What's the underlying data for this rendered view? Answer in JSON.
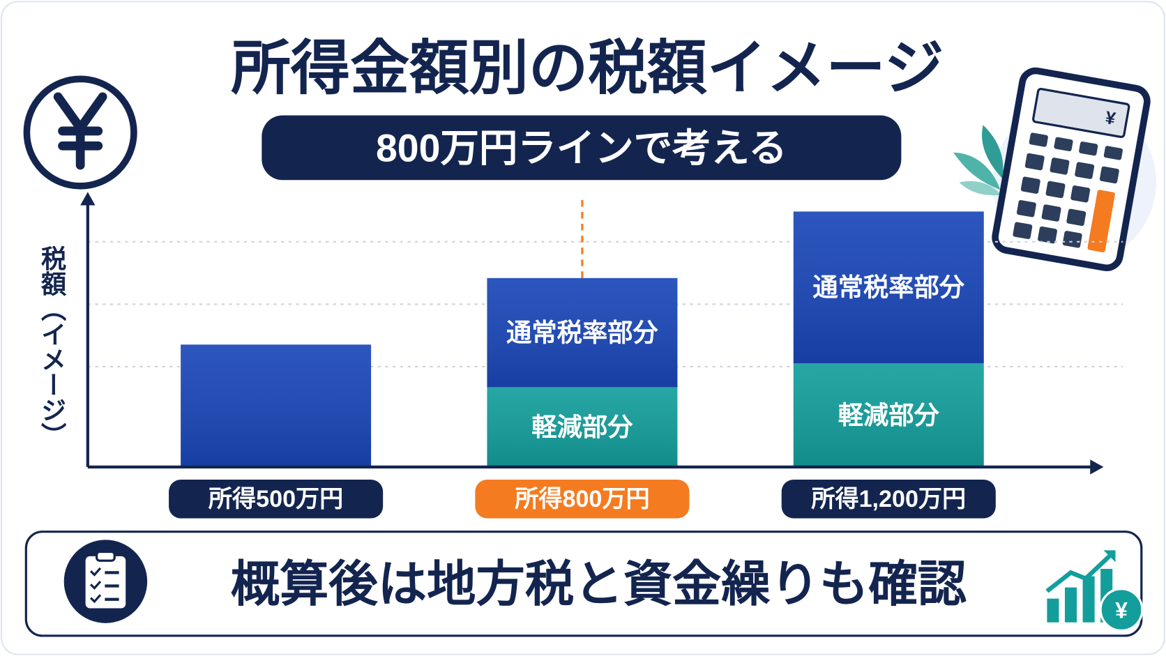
{
  "chart_data": {
    "type": "stacked-bar",
    "title": "所得金額別の税額イメージ",
    "subtitle": "800万円ラインで考える",
    "y_label": "税額（イメージ）",
    "footer": "概算後は地方税と資金繰りも確認",
    "categories": [
      "所得500万円",
      "所得800万円",
      "所得1,200万円"
    ],
    "series": [
      {
        "color": "#1a47b8",
        "values": [
          4.6,
          null,
          null
        ]
      },
      {
        "name": "軽減部分",
        "color": "#139e9c",
        "values": [
          null,
          3.0,
          3.9
        ]
      },
      {
        "name": "通常税率部分",
        "color": "#1a47b8",
        "values": [
          null,
          4.1,
          5.7
        ]
      }
    ],
    "ylim": [
      0,
      10
    ],
    "highlight": 1,
    "highlight_color": "#f47b20"
  }
}
